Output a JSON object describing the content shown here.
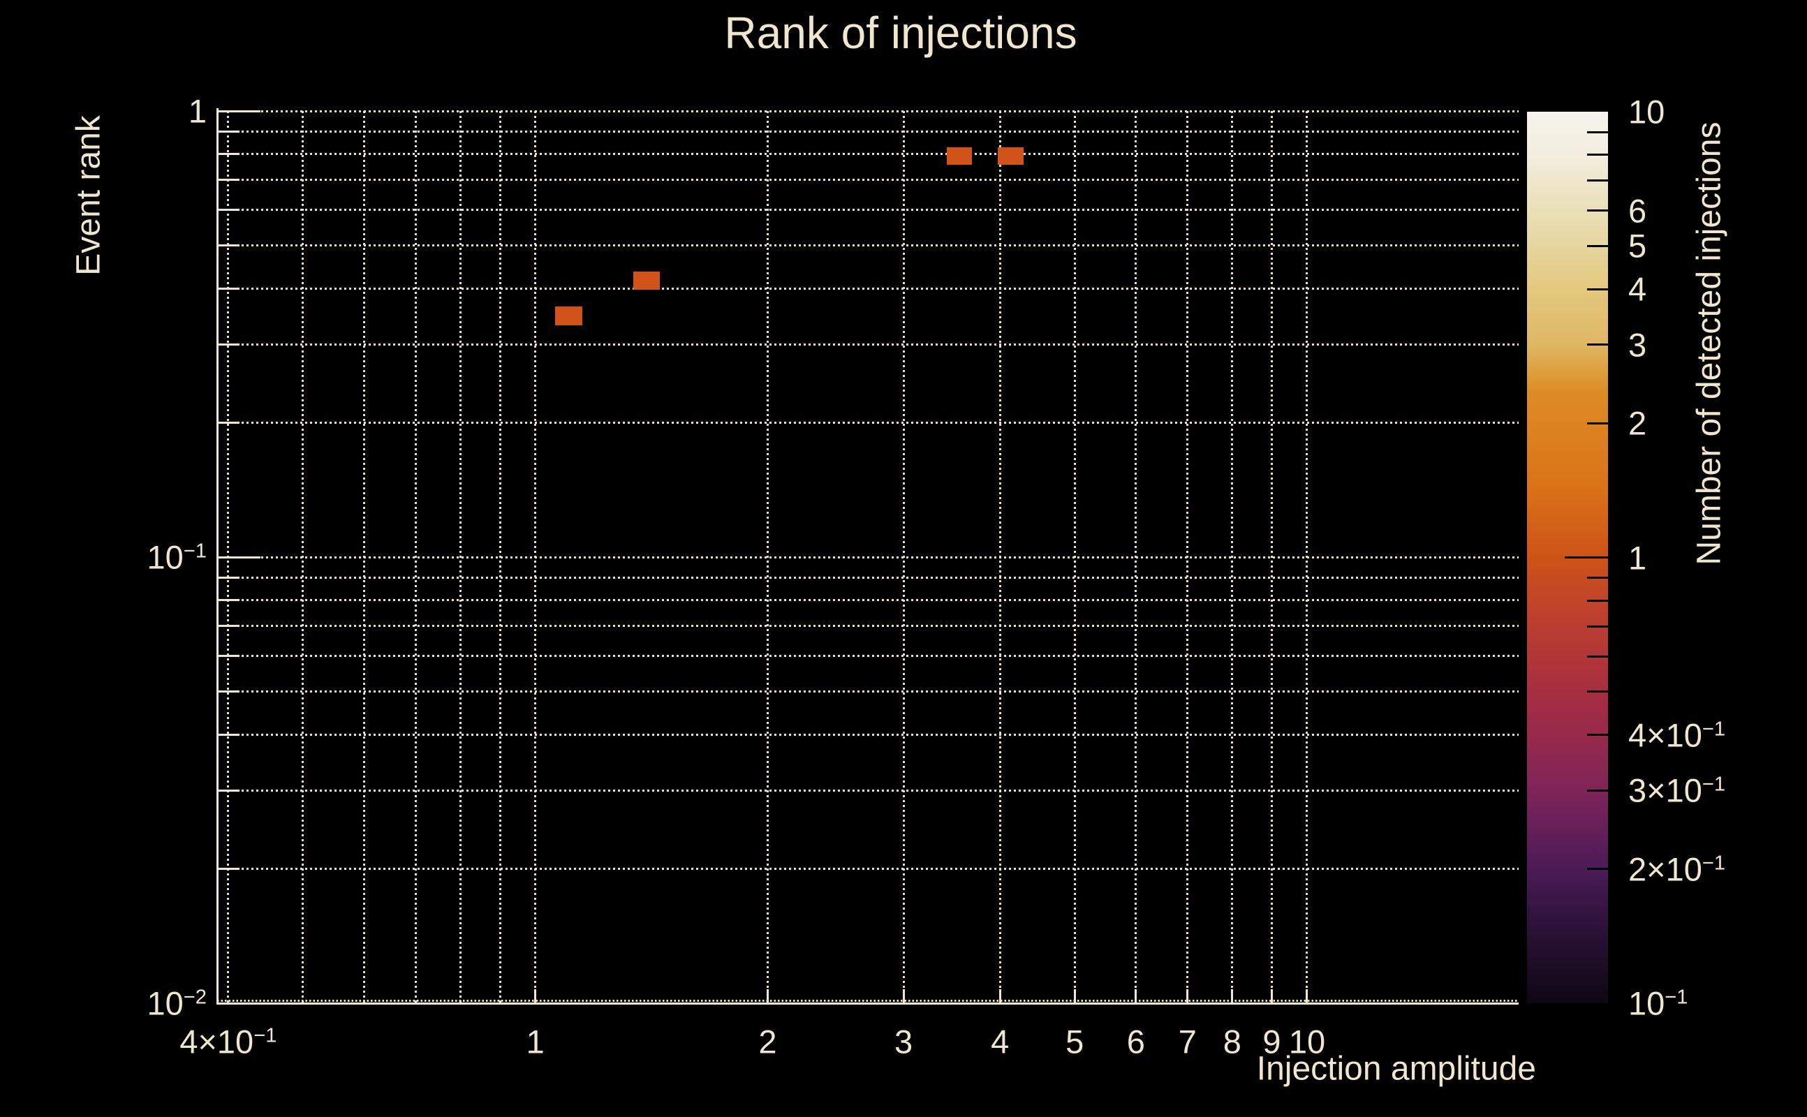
{
  "title": "Rank of injections",
  "colors": {
    "background": "#000000",
    "text": "#EFE6CD",
    "grid": "#EBE2C6",
    "spine": "#F0E7CE",
    "bin": "#D25319",
    "colorbar_tick": "#000000"
  },
  "chart_data": {
    "type": "heatmap",
    "title": "Rank of injections",
    "xlabel": "Injection amplitude",
    "ylabel": "Event rank",
    "colorbar_label": "Number of detected injections",
    "x_scale": "log",
    "y_scale": "log",
    "z_scale": "log",
    "xlim": [
      0.387,
      18.8
    ],
    "ylim": [
      0.01,
      1.0
    ],
    "zlim": [
      0.1,
      10
    ],
    "grid": true,
    "grid_style": "dotted",
    "legend_position": "right-colorbar",
    "bins": [
      {
        "x_min": 3.41,
        "x_max": 3.68,
        "y_min": 0.758,
        "y_max": 0.83,
        "count": 1
      },
      {
        "x_min": 3.97,
        "x_max": 4.29,
        "y_min": 0.758,
        "y_max": 0.83,
        "count": 1
      },
      {
        "x_min": 1.34,
        "x_max": 1.45,
        "y_min": 0.398,
        "y_max": 0.437,
        "count": 1
      },
      {
        "x_min": 1.06,
        "x_max": 1.15,
        "y_min": 0.331,
        "y_max": 0.364,
        "count": 1
      }
    ],
    "bin_color": "#D25319",
    "x_gridlines": [
      0.4,
      0.5,
      0.6,
      0.7,
      0.8,
      0.9,
      1,
      2,
      3,
      4,
      5,
      6,
      7,
      8,
      9,
      10
    ],
    "y_gridlines": [
      1,
      0.9,
      0.8,
      0.7,
      0.6,
      0.5,
      0.4,
      0.3,
      0.2,
      0.1,
      0.09,
      0.08,
      0.07,
      0.06,
      0.05,
      0.04,
      0.03,
      0.02
    ],
    "x_ticks": [
      {
        "value": 0.4,
        "label": "4×10",
        "exp": "−1",
        "tick": false
      },
      {
        "value": 1,
        "label": "1",
        "tick": true
      },
      {
        "value": 2,
        "label": "2",
        "tick": true
      },
      {
        "value": 3,
        "label": "3",
        "tick": true
      },
      {
        "value": 4,
        "label": "4",
        "tick": true
      },
      {
        "value": 5,
        "label": "5",
        "tick": true
      },
      {
        "value": 6,
        "label": "6",
        "tick": true
      },
      {
        "value": 7,
        "label": "7",
        "tick": true
      },
      {
        "value": 8,
        "label": "8",
        "tick": true
      },
      {
        "value": 9,
        "label": "9",
        "tick": true
      },
      {
        "value": 10,
        "label": "10",
        "tick": true
      }
    ],
    "y_ticks": [
      {
        "value": 1,
        "label": "1",
        "major": true
      },
      {
        "value": 0.9
      },
      {
        "value": 0.8
      },
      {
        "value": 0.7
      },
      {
        "value": 0.6
      },
      {
        "value": 0.5
      },
      {
        "value": 0.4
      },
      {
        "value": 0.3
      },
      {
        "value": 0.2
      },
      {
        "value": 0.1,
        "label": "10",
        "exp": "−1",
        "major": true
      },
      {
        "value": 0.09
      },
      {
        "value": 0.08
      },
      {
        "value": 0.07
      },
      {
        "value": 0.06
      },
      {
        "value": 0.05
      },
      {
        "value": 0.04
      },
      {
        "value": 0.03
      },
      {
        "value": 0.02
      },
      {
        "value": 0.01,
        "label": "10",
        "exp": "−2",
        "major": true
      }
    ],
    "colorbar": {
      "min": 0.1,
      "max": 10,
      "scale": "log",
      "stops": [
        {
          "pos": 0.0,
          "color": "#F6F4ED"
        },
        {
          "pos": 0.05,
          "color": "#F2EDDD"
        },
        {
          "pos": 0.111,
          "color": "#EADFB8"
        },
        {
          "pos": 0.151,
          "color": "#E6D59F"
        },
        {
          "pos": 0.199,
          "color": "#E3C87E"
        },
        {
          "pos": 0.261,
          "color": "#DFB763"
        },
        {
          "pos": 0.313,
          "color": "#DD8D25"
        },
        {
          "pos": 0.42,
          "color": "#D97318"
        },
        {
          "pos": 0.5,
          "color": "#CD5317"
        },
        {
          "pos": 0.549,
          "color": "#C2442A"
        },
        {
          "pos": 0.651,
          "color": "#A62E41"
        },
        {
          "pos": 0.699,
          "color": "#97294B"
        },
        {
          "pos": 0.761,
          "color": "#7F2459"
        },
        {
          "pos": 0.849,
          "color": "#4B1B58"
        },
        {
          "pos": 0.912,
          "color": "#2D1239"
        },
        {
          "pos": 1.0,
          "color": "#0D0712"
        }
      ],
      "ticks": [
        {
          "value": 9
        },
        {
          "value": 8
        },
        {
          "value": 7
        },
        {
          "value": 6
        },
        {
          "value": 5
        },
        {
          "value": 4
        },
        {
          "value": 3
        },
        {
          "value": 2
        },
        {
          "value": 1,
          "major": true
        },
        {
          "value": 0.9
        },
        {
          "value": 0.8
        },
        {
          "value": 0.7
        },
        {
          "value": 0.6
        },
        {
          "value": 0.5
        },
        {
          "value": 0.4
        },
        {
          "value": 0.3
        },
        {
          "value": 0.2
        }
      ],
      "labels": [
        {
          "value": 10,
          "label": "10"
        },
        {
          "value": 6,
          "label": "6"
        },
        {
          "value": 5,
          "label": "5"
        },
        {
          "value": 4,
          "label": "4"
        },
        {
          "value": 3,
          "label": "3"
        },
        {
          "value": 2,
          "label": "2"
        },
        {
          "value": 1,
          "label": "1"
        },
        {
          "value": 0.4,
          "label": "4×10",
          "exp": "−1"
        },
        {
          "value": 0.3,
          "label": "3×10",
          "exp": "−1"
        },
        {
          "value": 0.2,
          "label": "2×10",
          "exp": "−1"
        },
        {
          "value": 0.1,
          "label": "10",
          "exp": "−1"
        }
      ]
    }
  }
}
